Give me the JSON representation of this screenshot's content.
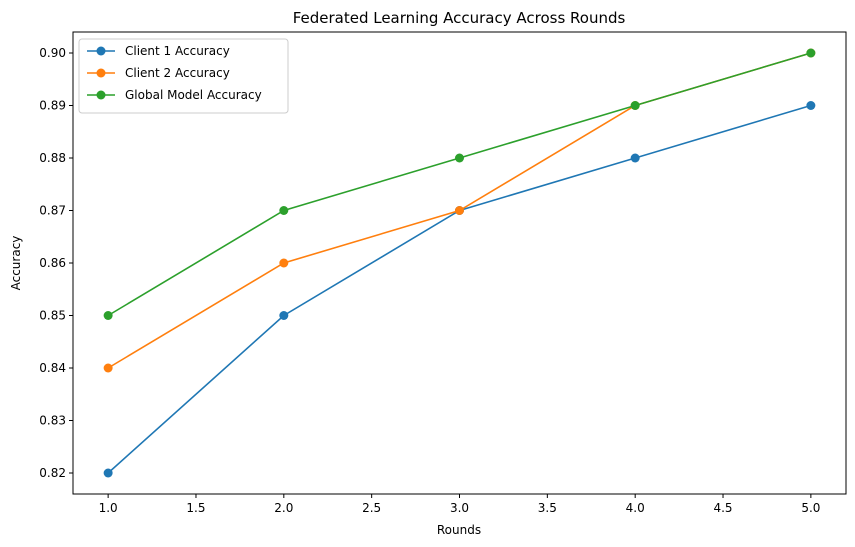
{
  "chart_data": {
    "type": "line",
    "title": "Federated Learning Accuracy Across Rounds",
    "xlabel": "Rounds",
    "ylabel": "Accuracy",
    "x": [
      1,
      2,
      3,
      4,
      5
    ],
    "xlim": [
      0.8,
      5.2
    ],
    "ylim": [
      0.816,
      0.904
    ],
    "xticks": [
      "1.0",
      "1.5",
      "2.0",
      "2.5",
      "3.0",
      "3.5",
      "4.0",
      "4.5",
      "5.0"
    ],
    "yticks": [
      "0.82",
      "0.83",
      "0.84",
      "0.85",
      "0.86",
      "0.87",
      "0.88",
      "0.89",
      "0.90"
    ],
    "grid": false,
    "legend": "top-left",
    "series": [
      {
        "name": "Client 1 Accuracy",
        "color": "#1f77b4",
        "values": [
          0.82,
          0.85,
          0.87,
          0.88,
          0.89
        ]
      },
      {
        "name": "Client 2 Accuracy",
        "color": "#ff7f0e",
        "values": [
          0.84,
          0.86,
          0.87,
          0.89,
          0.9
        ]
      },
      {
        "name": "Global Model Accuracy",
        "color": "#2ca02c",
        "values": [
          0.85,
          0.87,
          0.88,
          0.89,
          0.9
        ]
      }
    ]
  }
}
